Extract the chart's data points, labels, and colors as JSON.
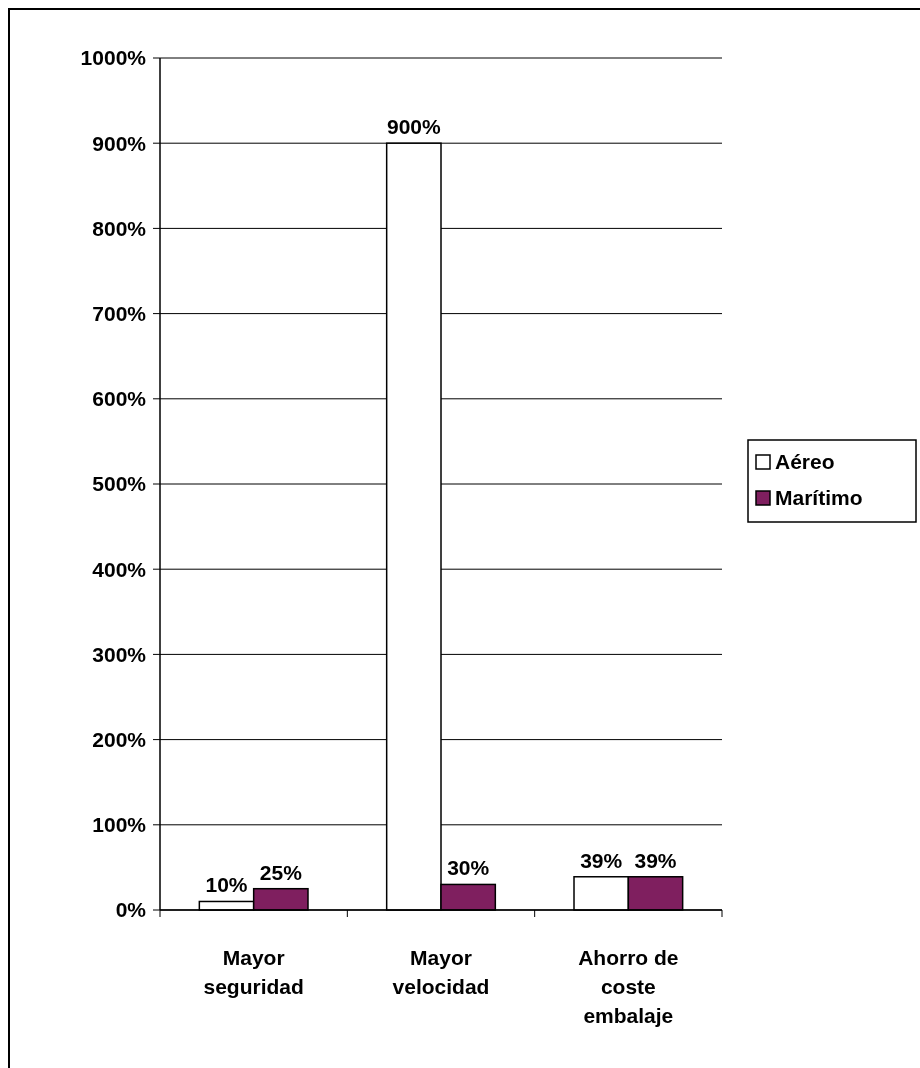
{
  "chart_data": {
    "type": "bar",
    "categories": [
      "Mayor seguridad",
      "Mayor velocidad",
      "Ahorro de coste embalaje"
    ],
    "series": [
      {
        "name": "Aéreo",
        "color": "#ffffff",
        "values": [
          10,
          900,
          39
        ],
        "value_labels": [
          "10%",
          "900%",
          "39%"
        ]
      },
      {
        "name": "Marítimo",
        "color": "#7f1f5f",
        "values": [
          25,
          30,
          39
        ],
        "value_labels": [
          "25%",
          "30%",
          "39%"
        ]
      }
    ],
    "ylim": [
      0,
      1000
    ],
    "yticks": [
      {
        "value": 0,
        "label": "0%"
      },
      {
        "value": 100,
        "label": "100%"
      },
      {
        "value": 200,
        "label": "200%"
      },
      {
        "value": 300,
        "label": "300%"
      },
      {
        "value": 400,
        "label": "400%"
      },
      {
        "value": 500,
        "label": "500%"
      },
      {
        "value": 600,
        "label": "600%"
      },
      {
        "value": 700,
        "label": "700%"
      },
      {
        "value": 800,
        "label": "800%"
      },
      {
        "value": 900,
        "label": "900%"
      },
      {
        "value": 1000,
        "label": "1000%"
      }
    ],
    "grid": "y",
    "legend": "right"
  }
}
